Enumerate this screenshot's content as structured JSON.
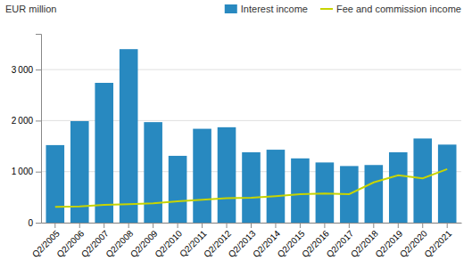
{
  "chart_data": {
    "type": "bar",
    "categories": [
      "Q2/2005",
      "Q2/2006",
      "Q2/2007",
      "Q2/2008",
      "Q2/2009",
      "Q2/2010",
      "Q2/2011",
      "Q2/2012",
      "Q2/2013",
      "Q2/2014",
      "Q2/2015",
      "Q2/2016",
      "Q2/2017",
      "Q2/2018",
      "Q2/2019",
      "Q2/2020",
      "Q2/2021"
    ],
    "series": [
      {
        "name": "Interest income",
        "type": "bar",
        "color": "#2889c0",
        "values": [
          1520,
          1990,
          2740,
          3400,
          1970,
          1310,
          1840,
          1870,
          1380,
          1430,
          1260,
          1180,
          1110,
          1130,
          1380,
          1650,
          1530
        ]
      },
      {
        "name": "Fee and commission income",
        "type": "line",
        "color": "#c8d400",
        "values": [
          310,
          320,
          350,
          360,
          380,
          420,
          450,
          480,
          490,
          520,
          560,
          570,
          560,
          790,
          930,
          870,
          1050
        ]
      }
    ],
    "ylabel": "EUR million",
    "ylim": [
      0,
      3700
    ],
    "yticks": [
      0,
      {
        "value": 1000,
        "label": "1 000"
      },
      {
        "value": 2000,
        "label": "2 000"
      },
      {
        "value": 3000,
        "label": "3 000"
      }
    ],
    "grid": true,
    "legend": "top-right"
  }
}
